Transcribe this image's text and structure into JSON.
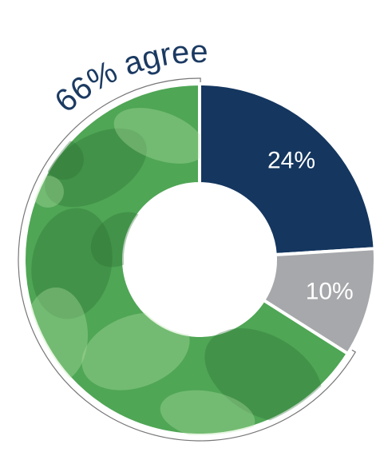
{
  "chart_data": {
    "type": "donut",
    "values": [
      24,
      10,
      66
    ],
    "value_labels": [
      "24%",
      "10%",
      "66% agree"
    ],
    "colors": [
      "#14365f",
      "#a7a8ab",
      "#4fa655"
    ]
  }
}
